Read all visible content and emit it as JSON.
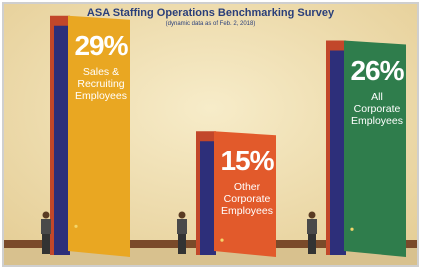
{
  "chart_data": {
    "type": "bar",
    "title": "ASA Staffing Operations Benchmarking Survey",
    "subtitle": "(dynamic data as of Feb. 2, 2018)",
    "categories": [
      "Sales & Recruiting Employees",
      "Other Corporate Employees",
      "All Corporate Employees"
    ],
    "values": [
      29,
      15,
      26
    ],
    "value_labels": [
      "29%",
      "15%",
      "26%"
    ],
    "colors": [
      "#e9a722",
      "#e25a2b",
      "#2f7d4c"
    ]
  }
}
